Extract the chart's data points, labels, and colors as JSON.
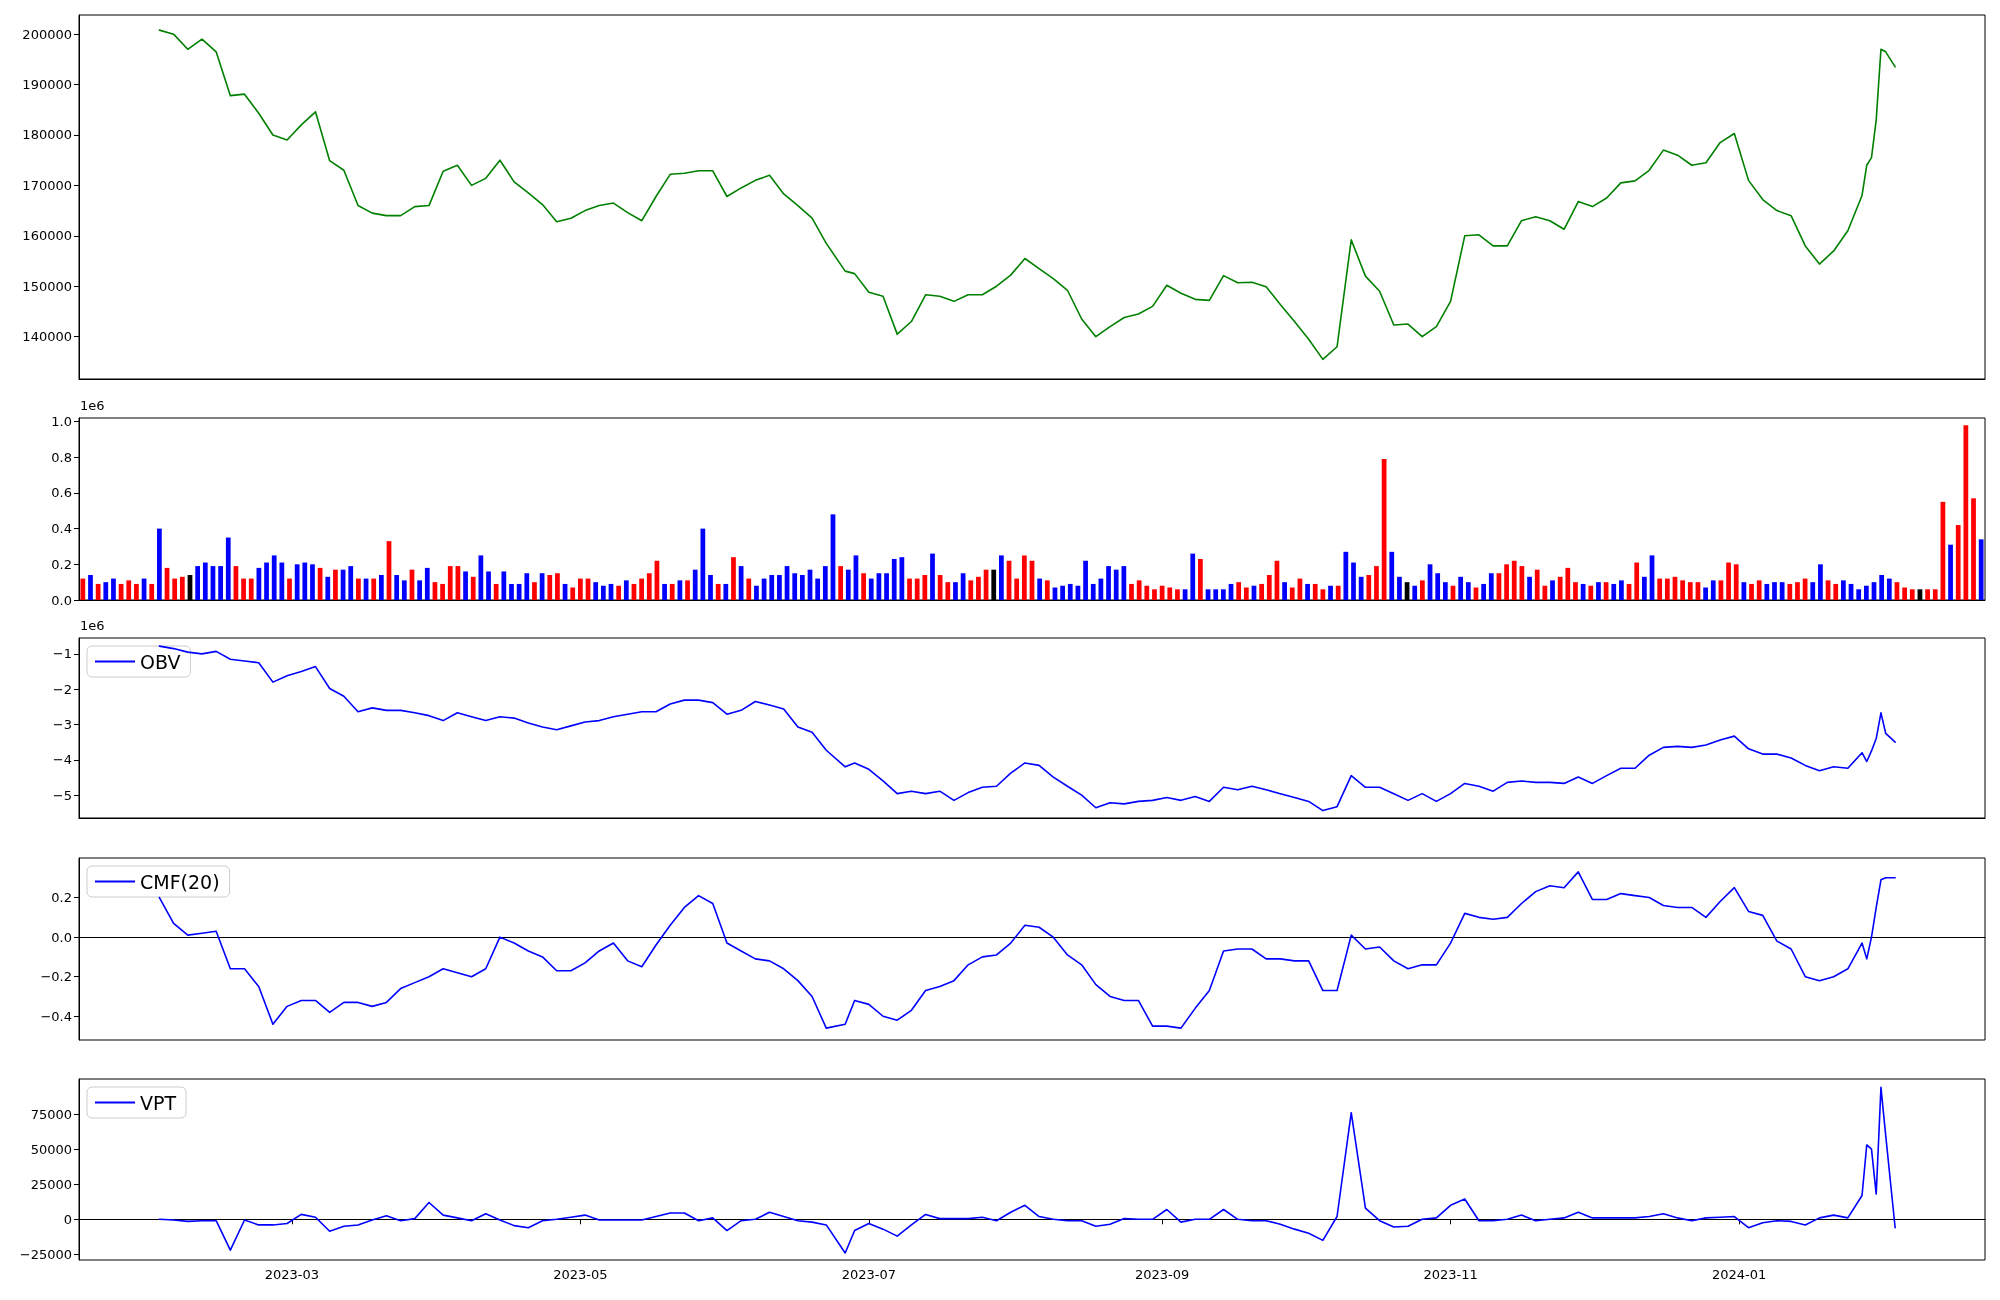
{
  "chart_data": [
    {
      "type": "line",
      "color": "#008000",
      "tick_labels": "y",
      "xlim": [
        "2023-01-15",
        "2024-02-22"
      ],
      "ylim": [
        131600,
        203800
      ],
      "yticks": [
        140000,
        150000,
        160000,
        170000,
        180000,
        190000,
        200000
      ],
      "x": [
        "2023-02-01",
        "2023-02-04",
        "2023-02-07",
        "2023-02-10",
        "2023-02-13",
        "2023-02-16",
        "2023-02-19",
        "2023-02-22",
        "2023-02-25",
        "2023-02-28",
        "2023-03-03",
        "2023-03-06",
        "2023-03-09",
        "2023-03-12",
        "2023-03-15",
        "2023-03-18",
        "2023-03-21",
        "2023-03-24",
        "2023-03-27",
        "2023-03-30",
        "2023-04-02",
        "2023-04-05",
        "2023-04-08",
        "2023-04-11",
        "2023-04-14",
        "2023-04-17",
        "2023-04-20",
        "2023-04-23",
        "2023-04-26",
        "2023-04-29",
        "2023-05-02",
        "2023-05-05",
        "2023-05-08",
        "2023-05-11",
        "2023-05-14",
        "2023-05-17",
        "2023-05-20",
        "2023-05-23",
        "2023-05-26",
        "2023-05-29",
        "2023-06-01",
        "2023-06-04",
        "2023-06-07",
        "2023-06-10",
        "2023-06-13",
        "2023-06-16",
        "2023-06-19",
        "2023-06-22",
        "2023-06-26",
        "2023-06-28",
        "2023-07-01",
        "2023-07-04",
        "2023-07-07",
        "2023-07-10",
        "2023-07-13",
        "2023-07-16",
        "2023-07-19",
        "2023-07-22",
        "2023-07-25",
        "2023-07-28",
        "2023-07-31",
        "2023-08-03",
        "2023-08-06",
        "2023-08-09",
        "2023-08-12",
        "2023-08-15",
        "2023-08-18",
        "2023-08-21",
        "2023-08-24",
        "2023-08-27",
        "2023-08-30",
        "2023-09-02",
        "2023-09-05",
        "2023-09-08",
        "2023-09-11",
        "2023-09-14",
        "2023-09-17",
        "2023-09-20",
        "2023-09-23",
        "2023-09-26",
        "2023-09-29",
        "2023-10-02",
        "2023-10-05",
        "2023-10-08",
        "2023-10-11",
        "2023-10-14",
        "2023-10-17",
        "2023-10-20",
        "2023-10-23",
        "2023-10-26",
        "2023-10-29",
        "2023-11-01",
        "2023-11-04",
        "2023-11-07",
        "2023-11-10",
        "2023-11-13",
        "2023-11-16",
        "2023-11-19",
        "2023-11-22",
        "2023-11-25",
        "2023-11-28",
        "2023-12-01",
        "2023-12-04",
        "2023-12-07",
        "2023-12-10",
        "2023-12-13",
        "2023-12-16",
        "2023-12-19",
        "2023-12-22",
        "2023-12-25",
        "2023-12-28",
        "2023-12-31",
        "2024-01-03",
        "2024-01-06",
        "2024-01-09",
        "2024-01-12",
        "2024-01-15",
        "2024-01-18",
        "2024-01-21",
        "2024-01-24",
        "2024-01-27",
        "2024-01-28",
        "2024-01-29",
        "2024-01-30",
        "2024-01-31",
        "2024-02-01",
        "2024-02-03"
      ],
      "values": [
        200800,
        200000,
        197000,
        199000,
        196500,
        187800,
        188100,
        184300,
        180000,
        179000,
        182000,
        184600,
        174900,
        173000,
        166000,
        164500,
        164000,
        164000,
        165800,
        166000,
        172800,
        174000,
        170000,
        171400,
        175000,
        170700,
        168500,
        166200,
        162800,
        163500,
        165000,
        166000,
        166500,
        164600,
        163000,
        167800,
        172200,
        172400,
        172900,
        172900,
        167800,
        169500,
        171000,
        172000,
        168300,
        166000,
        163500,
        158500,
        153000,
        152500,
        148800,
        148000,
        140500,
        143000,
        148300,
        148000,
        147000,
        148300,
        148300,
        150000,
        152200,
        155500,
        153500,
        151500,
        149200,
        143500,
        140000,
        142000,
        143800,
        144500,
        146000,
        150200,
        148600,
        147400,
        147200,
        152100,
        150700,
        150800,
        149900,
        146400,
        143000,
        139500,
        135500,
        138000,
        159200,
        152000,
        149000,
        142300,
        142500,
        140000,
        142000,
        147000,
        160000,
        160200,
        158000,
        158000,
        163000,
        163800,
        163000,
        161300,
        166800,
        165800,
        167500,
        170500,
        170900,
        173000,
        177000,
        176000,
        174000,
        174500,
        178500,
        180300,
        171000,
        167200,
        165000,
        164000,
        158000,
        154400,
        157000,
        161000,
        168000,
        174000,
        175500,
        183000,
        197000,
        196500,
        193500
      ]
    },
    {
      "type": "bar",
      "tick_labels": "y",
      "ylabel": "1e6",
      "ylim": [
        0,
        1.02
      ],
      "yticks": [
        {
          "value": 0,
          "label": "0.0"
        },
        {
          "value": 0.2,
          "label": "0.2"
        },
        {
          "value": 0.4,
          "label": "0.4"
        },
        {
          "value": 0.6,
          "label": "0.6"
        },
        {
          "value": 0.8,
          "label": "0.8"
        },
        {
          "value": 1,
          "label": "1.0"
        }
      ],
      "categories": [
        null,
        null,
        null,
        null,
        null,
        null,
        null,
        null,
        null,
        null,
        null,
        null,
        null,
        null,
        null,
        null,
        null,
        null,
        null,
        null,
        null,
        null,
        null,
        null,
        null,
        null,
        null,
        null,
        null,
        null,
        null,
        null,
        null,
        null,
        null,
        null,
        null,
        null,
        null,
        null,
        null,
        null,
        null,
        null,
        null,
        null,
        null,
        null,
        null,
        null,
        null,
        null,
        null,
        null,
        null,
        null,
        null,
        null,
        null,
        null,
        null,
        null,
        null,
        null,
        null,
        null,
        null,
        null,
        null,
        null,
        null,
        null,
        null,
        null,
        null,
        null,
        null,
        null,
        null,
        null,
        null,
        null,
        null,
        null,
        null,
        null,
        null,
        null,
        null,
        null,
        null,
        null,
        null,
        null,
        null,
        null,
        null,
        null,
        null,
        null,
        null,
        null,
        null,
        null,
        null,
        null,
        null,
        null,
        null,
        null,
        null,
        null,
        null,
        null,
        null,
        null,
        null,
        null,
        null,
        null,
        null,
        null,
        null,
        null,
        null,
        null,
        null,
        null,
        null,
        null,
        null,
        null,
        null,
        null,
        null,
        null,
        null,
        null,
        null,
        null,
        null,
        null,
        null,
        null,
        null,
        null,
        null,
        null,
        null,
        null,
        null,
        null,
        null,
        null,
        null,
        null,
        null,
        null,
        null,
        null,
        null,
        null,
        null,
        null,
        null,
        null,
        null,
        null,
        null,
        null,
        null,
        null,
        null,
        null,
        null,
        null,
        null,
        null,
        null,
        null,
        null,
        null,
        null,
        null,
        null,
        null,
        null,
        null,
        null,
        null,
        null,
        null,
        null,
        null,
        null,
        null,
        null,
        null,
        null,
        null,
        null,
        null,
        null,
        null,
        null,
        null,
        null,
        null,
        null,
        null,
        null,
        null,
        null,
        null,
        null,
        null,
        null,
        null,
        null,
        null,
        null,
        null,
        null,
        null,
        null,
        null,
        null,
        null,
        null,
        null,
        null,
        null,
        null,
        null,
        null,
        null,
        null,
        null,
        null,
        null,
        null,
        null,
        null,
        null,
        null,
        null,
        null,
        null,
        null
      ],
      "values": [
        0.12,
        0.14,
        0.09,
        0.1,
        0.12,
        0.09,
        0.11,
        0.09,
        0.12,
        0.09,
        0.4,
        0.18,
        0.12,
        0.13,
        0.14,
        0.19,
        0.21,
        0.19,
        0.19,
        0.35,
        0.19,
        0.12,
        0.12,
        0.18,
        0.21,
        0.25,
        0.21,
        0.12,
        0.2,
        0.21,
        0.2,
        0.18,
        0.13,
        0.17,
        0.17,
        0.19,
        0.12,
        0.12,
        0.12,
        0.14,
        0.33,
        0.14,
        0.11,
        0.17,
        0.11,
        0.18,
        0.1,
        0.09,
        0.19,
        0.19,
        0.16,
        0.13,
        0.25,
        0.16,
        0.09,
        0.16,
        0.09,
        0.09,
        0.15,
        0.1,
        0.15,
        0.14,
        0.15,
        0.09,
        0.07,
        0.12,
        0.12,
        0.1,
        0.08,
        0.09,
        0.08,
        0.11,
        0.09,
        0.12,
        0.15,
        0.22,
        0.09,
        0.09,
        0.11,
        0.11,
        0.17,
        0.4,
        0.14,
        0.09,
        0.09,
        0.24,
        0.19,
        0.12,
        0.08,
        0.12,
        0.14,
        0.14,
        0.19,
        0.15,
        0.14,
        0.17,
        0.12,
        0.19,
        0.48,
        0.19,
        0.17,
        0.25,
        0.15,
        0.12,
        0.15,
        0.15,
        0.23,
        0.24,
        0.12,
        0.12,
        0.14,
        0.26,
        0.14,
        0.1,
        0.1,
        0.15,
        0.11,
        0.13,
        0.17,
        0.17,
        0.25,
        0.22,
        0.12,
        0.25,
        0.22,
        0.12,
        0.11,
        0.07,
        0.08,
        0.09,
        0.08,
        0.22,
        0.09,
        0.12,
        0.19,
        0.17,
        0.19,
        0.09,
        0.11,
        0.08,
        0.06,
        0.08,
        0.07,
        0.06,
        0.06,
        0.26,
        0.23,
        0.06,
        0.06,
        0.06,
        0.09,
        0.1,
        0.07,
        0.08,
        0.09,
        0.14,
        0.22,
        0.1,
        0.07,
        0.12,
        0.09,
        0.09,
        0.06,
        0.08,
        0.08,
        0.27,
        0.21,
        0.13,
        0.14,
        0.19,
        0.79,
        0.27,
        0.13,
        0.1,
        0.08,
        0.11,
        0.2,
        0.15,
        0.1,
        0.08,
        0.13,
        0.1,
        0.07,
        0.09,
        0.15,
        0.15,
        0.2,
        0.22,
        0.19,
        0.13,
        0.17,
        0.08,
        0.11,
        0.13,
        0.18,
        0.1,
        0.09,
        0.08,
        0.1,
        0.1,
        0.09,
        0.11,
        0.09,
        0.21,
        0.13,
        0.25,
        0.12,
        0.12,
        0.13,
        0.11,
        0.1,
        0.1,
        0.07,
        0.11,
        0.11,
        0.21,
        0.2,
        0.1,
        0.09,
        0.11,
        0.09,
        0.1,
        0.1,
        0.09,
        0.1,
        0.12,
        0.1,
        0.2,
        0.11,
        0.09,
        0.11,
        0.09,
        0.06,
        0.08,
        0.1,
        0.14,
        0.12,
        0.1,
        0.07,
        0.06,
        0.06,
        0.06,
        0.06,
        0.55,
        0.31,
        0.42,
        0.98,
        0.57,
        0.34
      ],
      "colors": [
        "#ff0000",
        "#0000ff",
        "#ff0000",
        "#0000ff",
        "#0000ff",
        "#ff0000",
        "#ff0000",
        "#ff0000",
        "#0000ff",
        "#ff0000",
        "#0000ff",
        "#ff0000",
        "#ff0000",
        "#ff0000",
        "#000000",
        "#0000ff",
        "#0000ff",
        "#0000ff",
        "#0000ff",
        "#0000ff",
        "#ff0000",
        "#ff0000",
        "#ff0000",
        "#0000ff",
        "#0000ff",
        "#0000ff",
        "#0000ff",
        "#ff0000",
        "#0000ff",
        "#0000ff",
        "#0000ff",
        "#ff0000",
        "#0000ff",
        "#ff0000",
        "#0000ff",
        "#0000ff",
        "#ff0000",
        "#0000ff",
        "#ff0000",
        "#0000ff",
        "#ff0000",
        "#0000ff",
        "#0000ff",
        "#ff0000",
        "#0000ff",
        "#0000ff",
        "#ff0000",
        "#ff0000",
        "#ff0000",
        "#ff0000",
        "#0000ff",
        "#ff0000",
        "#0000ff",
        "#0000ff",
        "#ff0000",
        "#0000ff",
        "#0000ff",
        "#0000ff",
        "#0000ff",
        "#ff0000",
        "#0000ff",
        "#ff0000",
        "#ff0000",
        "#0000ff",
        "#ff0000",
        "#ff0000",
        "#ff0000",
        "#0000ff",
        "#0000ff",
        "#0000ff",
        "#ff0000",
        "#0000ff",
        "#ff0000",
        "#ff0000",
        "#ff0000",
        "#ff0000",
        "#0000ff",
        "#ff0000",
        "#0000ff",
        "#ff0000",
        "#0000ff",
        "#0000ff",
        "#0000ff",
        "#ff0000",
        "#0000ff",
        "#ff0000",
        "#0000ff",
        "#ff0000",
        "#0000ff",
        "#0000ff",
        "#0000ff",
        "#0000ff",
        "#0000ff",
        "#0000ff",
        "#0000ff",
        "#0000ff",
        "#0000ff",
        "#0000ff",
        "#0000ff",
        "#ff0000",
        "#0000ff",
        "#0000ff",
        "#ff0000",
        "#0000ff",
        "#0000ff",
        "#0000ff",
        "#0000ff",
        "#0000ff",
        "#ff0000",
        "#ff0000",
        "#ff0000",
        "#0000ff",
        "#ff0000",
        "#ff0000",
        "#0000ff",
        "#0000ff",
        "#ff0000",
        "#ff0000",
        "#ff0000",
        "#000000",
        "#0000ff",
        "#ff0000",
        "#ff0000",
        "#ff0000",
        "#ff0000",
        "#0000ff",
        "#ff0000",
        "#0000ff",
        "#0000ff",
        "#0000ff",
        "#0000ff",
        "#0000ff",
        "#0000ff",
        "#0000ff",
        "#0000ff",
        "#0000ff",
        "#0000ff",
        "#ff0000",
        "#ff0000",
        "#ff0000",
        "#ff0000",
        "#ff0000",
        "#ff0000",
        "#ff0000",
        "#0000ff",
        "#0000ff",
        "#ff0000",
        "#0000ff",
        "#0000ff",
        "#0000ff",
        "#0000ff",
        "#ff0000",
        "#ff0000",
        "#0000ff",
        "#ff0000",
        "#ff0000",
        "#ff0000",
        "#0000ff",
        "#ff0000",
        "#ff0000",
        "#0000ff",
        "#ff0000",
        "#ff0000",
        "#0000ff",
        "#ff0000",
        "#0000ff",
        "#0000ff",
        "#0000ff",
        "#ff0000",
        "#ff0000",
        "#ff0000",
        "#0000ff",
        "#0000ff",
        "#000000",
        "#0000ff",
        "#ff0000",
        "#0000ff",
        "#0000ff",
        "#0000ff",
        "#ff0000",
        "#0000ff",
        "#0000ff",
        "#ff0000",
        "#0000ff",
        "#0000ff",
        "#ff0000",
        "#ff0000",
        "#ff0000",
        "#ff0000",
        "#0000ff",
        "#ff0000",
        "#ff0000",
        "#0000ff",
        "#ff0000",
        "#ff0000",
        "#ff0000",
        "#0000ff",
        "#ff0000",
        "#0000ff",
        "#ff0000",
        "#0000ff",
        "#0000ff",
        "#ff0000",
        "#ff0000",
        "#0000ff",
        "#0000ff",
        "#ff0000",
        "#ff0000",
        "#ff0000",
        "#ff0000",
        "#ff0000",
        "#ff0000",
        "#0000ff",
        "#0000ff",
        "#ff0000",
        "#ff0000",
        "#ff0000",
        "#0000ff",
        "#ff0000",
        "#ff0000",
        "#0000ff",
        "#0000ff",
        "#0000ff",
        "#ff0000",
        "#ff0000",
        "#ff0000",
        "#0000ff",
        "#0000ff",
        "#ff0000",
        "#ff0000",
        "#0000ff",
        "#0000ff",
        "#0000ff",
        "#0000ff",
        "#0000ff",
        "#0000ff",
        "#0000ff",
        "#ff0000",
        "#ff0000",
        "#ff0000",
        "#000000",
        "#ff0000",
        "#ff0000",
        "#ff0000",
        "#0000ff",
        "#ff0000",
        "#ff0000",
        "#ff0000",
        "#0000ff"
      ]
    },
    {
      "type": "line",
      "tick_labels": "y",
      "legend": "top left",
      "ylabel": "1e6",
      "xlim": [
        "2023-01-15",
        "2024-02-22"
      ],
      "ylim": [
        -5.65,
        -0.55
      ],
      "yticks": [
        {
          "value": -5,
          "label": "−5"
        },
        {
          "value": -4,
          "label": "−4"
        },
        {
          "value": -3,
          "label": "−3"
        },
        {
          "value": -2,
          "label": "−2"
        },
        {
          "value": -1,
          "label": "−1"
        }
      ],
      "x": [
        "2023-02-01",
        "2023-02-04",
        "2023-02-07",
        "2023-02-10",
        "2023-02-13",
        "2023-02-16",
        "2023-02-19",
        "2023-02-22",
        "2023-02-25",
        "2023-02-28",
        "2023-03-03",
        "2023-03-06",
        "2023-03-09",
        "2023-03-12",
        "2023-03-15",
        "2023-03-18",
        "2023-03-21",
        "2023-03-24",
        "2023-03-27",
        "2023-03-30",
        "2023-04-02",
        "2023-04-05",
        "2023-04-08",
        "2023-04-11",
        "2023-04-14",
        "2023-04-17",
        "2023-04-20",
        "2023-04-23",
        "2023-04-26",
        "2023-04-29",
        "2023-05-02",
        "2023-05-05",
        "2023-05-08",
        "2023-05-11",
        "2023-05-14",
        "2023-05-17",
        "2023-05-20",
        "2023-05-23",
        "2023-05-26",
        "2023-05-29",
        "2023-06-01",
        "2023-06-04",
        "2023-06-07",
        "2023-06-10",
        "2023-06-13",
        "2023-06-16",
        "2023-06-19",
        "2023-06-22",
        "2023-06-26",
        "2023-06-28",
        "2023-07-01",
        "2023-07-04",
        "2023-07-07",
        "2023-07-10",
        "2023-07-13",
        "2023-07-16",
        "2023-07-19",
        "2023-07-22",
        "2023-07-25",
        "2023-07-28",
        "2023-07-31",
        "2023-08-03",
        "2023-08-06",
        "2023-08-09",
        "2023-08-12",
        "2023-08-15",
        "2023-08-18",
        "2023-08-21",
        "2023-08-24",
        "2023-08-27",
        "2023-08-30",
        "2023-09-02",
        "2023-09-05",
        "2023-09-08",
        "2023-09-11",
        "2023-09-14",
        "2023-09-17",
        "2023-09-20",
        "2023-09-23",
        "2023-09-26",
        "2023-09-29",
        "2023-10-02",
        "2023-10-05",
        "2023-10-08",
        "2023-10-11",
        "2023-10-14",
        "2023-10-17",
        "2023-10-20",
        "2023-10-23",
        "2023-10-26",
        "2023-10-29",
        "2023-11-01",
        "2023-11-04",
        "2023-11-07",
        "2023-11-10",
        "2023-11-13",
        "2023-11-16",
        "2023-11-19",
        "2023-11-22",
        "2023-11-25",
        "2023-11-28",
        "2023-12-01",
        "2023-12-04",
        "2023-12-07",
        "2023-12-10",
        "2023-12-13",
        "2023-12-16",
        "2023-12-19",
        "2023-12-22",
        "2023-12-25",
        "2023-12-28",
        "2023-12-31",
        "2024-01-03",
        "2024-01-06",
        "2024-01-09",
        "2024-01-12",
        "2024-01-15",
        "2024-01-18",
        "2024-01-21",
        "2024-01-24",
        "2024-01-27",
        "2024-01-28",
        "2024-01-29",
        "2024-01-30",
        "2024-01-31",
        "2024-02-01",
        "2024-02-03"
      ],
      "series": [
        {
          "name": "OBV",
          "color": "#0000ff",
          "values": [
            -0.78,
            -0.85,
            -0.95,
            -1.0,
            -0.93,
            -1.15,
            -1.2,
            -1.25,
            -1.8,
            -1.62,
            -1.5,
            -1.36,
            -1.98,
            -2.2,
            -2.64,
            -2.53,
            -2.6,
            -2.6,
            -2.67,
            -2.75,
            -2.89,
            -2.67,
            -2.78,
            -2.89,
            -2.78,
            -2.82,
            -2.96,
            -3.07,
            -3.15,
            -3.04,
            -2.93,
            -2.89,
            -2.78,
            -2.71,
            -2.64,
            -2.64,
            -2.42,
            -2.31,
            -2.31,
            -2.38,
            -2.71,
            -2.6,
            -2.35,
            -2.45,
            -2.56,
            -3.07,
            -3.22,
            -3.73,
            -4.2,
            -4.09,
            -4.27,
            -4.6,
            -4.96,
            -4.89,
            -4.96,
            -4.89,
            -5.15,
            -4.93,
            -4.78,
            -4.75,
            -4.38,
            -4.09,
            -4.16,
            -4.49,
            -4.75,
            -5.0,
            -5.36,
            -5.22,
            -5.25,
            -5.18,
            -5.15,
            -5.07,
            -5.15,
            -5.04,
            -5.18,
            -4.78,
            -4.85,
            -4.75,
            -4.85,
            -4.96,
            -5.07,
            -5.18,
            -5.44,
            -5.33,
            -4.45,
            -4.78,
            -4.78,
            -4.96,
            -5.15,
            -4.96,
            -5.18,
            -4.96,
            -4.67,
            -4.75,
            -4.89,
            -4.64,
            -4.6,
            -4.64,
            -4.64,
            -4.67,
            -4.49,
            -4.67,
            -4.45,
            -4.24,
            -4.24,
            -3.87,
            -3.65,
            -3.62,
            -3.65,
            -3.58,
            -3.44,
            -3.33,
            -3.69,
            -3.84,
            -3.84,
            -3.95,
            -4.16,
            -4.31,
            -4.2,
            -4.24,
            -3.8,
            -4.05,
            -3.75,
            -3.4,
            -2.67,
            -3.25,
            -3.5
          ]
        }
      ]
    },
    {
      "type": "line",
      "tick_labels": "y",
      "legend": "top left",
      "xlim": [
        "2023-01-15",
        "2024-02-22"
      ],
      "ylim": [
        -0.52,
        0.4
      ],
      "yticks": [
        {
          "value": -0.4,
          "label": "−0.4"
        },
        {
          "value": -0.2,
          "label": "−0.2"
        },
        {
          "value": 0,
          "label": "0.0"
        },
        {
          "value": 0.2,
          "label": "0.2"
        }
      ],
      "x": [
        "2023-02-01",
        "2023-02-04",
        "2023-02-07",
        "2023-02-10",
        "2023-02-13",
        "2023-02-16",
        "2023-02-19",
        "2023-02-22",
        "2023-02-25",
        "2023-02-28",
        "2023-03-03",
        "2023-03-06",
        "2023-03-09",
        "2023-03-12",
        "2023-03-15",
        "2023-03-18",
        "2023-03-21",
        "2023-03-24",
        "2023-03-27",
        "2023-03-30",
        "2023-04-02",
        "2023-04-05",
        "2023-04-08",
        "2023-04-11",
        "2023-04-14",
        "2023-04-17",
        "2023-04-20",
        "2023-04-23",
        "2023-04-26",
        "2023-04-29",
        "2023-05-02",
        "2023-05-05",
        "2023-05-08",
        "2023-05-11",
        "2023-05-14",
        "2023-05-17",
        "2023-05-20",
        "2023-05-23",
        "2023-05-26",
        "2023-05-29",
        "2023-06-01",
        "2023-06-04",
        "2023-06-07",
        "2023-06-10",
        "2023-06-13",
        "2023-06-16",
        "2023-06-19",
        "2023-06-22",
        "2023-06-26",
        "2023-06-28",
        "2023-07-01",
        "2023-07-04",
        "2023-07-07",
        "2023-07-10",
        "2023-07-13",
        "2023-07-16",
        "2023-07-19",
        "2023-07-22",
        "2023-07-25",
        "2023-07-28",
        "2023-07-31",
        "2023-08-03",
        "2023-08-06",
        "2023-08-09",
        "2023-08-12",
        "2023-08-15",
        "2023-08-18",
        "2023-08-21",
        "2023-08-24",
        "2023-08-27",
        "2023-08-30",
        "2023-09-02",
        "2023-09-05",
        "2023-09-08",
        "2023-09-11",
        "2023-09-14",
        "2023-09-17",
        "2023-09-20",
        "2023-09-23",
        "2023-09-26",
        "2023-09-29",
        "2023-10-02",
        "2023-10-05",
        "2023-10-08",
        "2023-10-11",
        "2023-10-14",
        "2023-10-17",
        "2023-10-20",
        "2023-10-23",
        "2023-10-26",
        "2023-10-29",
        "2023-11-01",
        "2023-11-04",
        "2023-11-07",
        "2023-11-10",
        "2023-11-13",
        "2023-11-16",
        "2023-11-19",
        "2023-11-22",
        "2023-11-25",
        "2023-11-28",
        "2023-12-01",
        "2023-12-04",
        "2023-12-07",
        "2023-12-10",
        "2023-12-13",
        "2023-12-16",
        "2023-12-19",
        "2023-12-22",
        "2023-12-25",
        "2023-12-28",
        "2023-12-31",
        "2024-01-03",
        "2024-01-06",
        "2024-01-09",
        "2024-01-12",
        "2024-01-15",
        "2024-01-18",
        "2024-01-21",
        "2024-01-24",
        "2024-01-27",
        "2024-01-28",
        "2024-01-29",
        "2024-01-30",
        "2024-01-31",
        "2024-02-01",
        "2024-02-03"
      ],
      "series": [
        {
          "name": "CMF(20)",
          "color": "#0000ff",
          "values": [
            0.2,
            0.07,
            0.01,
            0.02,
            0.03,
            -0.16,
            -0.16,
            -0.25,
            -0.44,
            -0.35,
            -0.32,
            -0.32,
            -0.38,
            -0.33,
            -0.33,
            -0.35,
            -0.33,
            -0.26,
            -0.23,
            -0.2,
            -0.16,
            -0.18,
            -0.2,
            -0.16,
            0.0,
            -0.03,
            -0.07,
            -0.1,
            -0.17,
            -0.17,
            -0.13,
            -0.07,
            -0.03,
            -0.12,
            -0.15,
            -0.04,
            0.06,
            0.15,
            0.21,
            0.17,
            -0.03,
            -0.07,
            -0.11,
            -0.12,
            -0.16,
            -0.22,
            -0.3,
            -0.46,
            -0.44,
            -0.32,
            -0.34,
            -0.4,
            -0.42,
            -0.37,
            -0.27,
            -0.25,
            -0.22,
            -0.14,
            -0.1,
            -0.09,
            -0.03,
            0.06,
            0.05,
            0.0,
            -0.09,
            -0.14,
            -0.24,
            -0.3,
            -0.32,
            -0.32,
            -0.45,
            -0.45,
            -0.46,
            -0.36,
            -0.27,
            -0.07,
            -0.06,
            -0.06,
            -0.11,
            -0.11,
            -0.12,
            -0.12,
            -0.27,
            -0.27,
            0.01,
            -0.06,
            -0.05,
            -0.12,
            -0.16,
            -0.14,
            -0.14,
            -0.03,
            0.12,
            0.1,
            0.09,
            0.1,
            0.17,
            0.23,
            0.26,
            0.25,
            0.33,
            0.19,
            0.19,
            0.22,
            0.21,
            0.2,
            0.16,
            0.15,
            0.15,
            0.1,
            0.18,
            0.25,
            0.13,
            0.11,
            -0.02,
            -0.06,
            -0.2,
            -0.22,
            -0.2,
            -0.16,
            -0.03,
            -0.11,
            0.0,
            0.15,
            0.29,
            0.3,
            0.3
          ]
        }
      ]
    },
    {
      "type": "line",
      "legend": "top left",
      "xlim": [
        "2023-01-15",
        "2024-02-22"
      ],
      "xticks": [
        "2023-03",
        "2023-05",
        "2023-07",
        "2023-09",
        "2023-11",
        "2024-01"
      ],
      "ylim": [
        -29000,
        100000
      ],
      "yticks": [
        {
          "value": -25000,
          "label": "−25000"
        },
        0,
        25000,
        50000,
        75000
      ],
      "x": [
        "2023-02-01",
        "2023-02-04",
        "2023-02-07",
        "2023-02-10",
        "2023-02-13",
        "2023-02-16",
        "2023-02-19",
        "2023-02-22",
        "2023-02-25",
        "2023-02-28",
        "2023-03-03",
        "2023-03-06",
        "2023-03-09",
        "2023-03-12",
        "2023-03-15",
        "2023-03-18",
        "2023-03-21",
        "2023-03-24",
        "2023-03-27",
        "2023-03-30",
        "2023-04-02",
        "2023-04-05",
        "2023-04-08",
        "2023-04-11",
        "2023-04-14",
        "2023-04-17",
        "2023-04-20",
        "2023-04-23",
        "2023-04-26",
        "2023-04-29",
        "2023-05-02",
        "2023-05-05",
        "2023-05-08",
        "2023-05-11",
        "2023-05-14",
        "2023-05-17",
        "2023-05-20",
        "2023-05-23",
        "2023-05-26",
        "2023-05-29",
        "2023-06-01",
        "2023-06-04",
        "2023-06-07",
        "2023-06-10",
        "2023-06-13",
        "2023-06-16",
        "2023-06-19",
        "2023-06-22",
        "2023-06-26",
        "2023-06-28",
        "2023-07-01",
        "2023-07-04",
        "2023-07-07",
        "2023-07-10",
        "2023-07-13",
        "2023-07-16",
        "2023-07-19",
        "2023-07-22",
        "2023-07-25",
        "2023-07-28",
        "2023-07-31",
        "2023-08-03",
        "2023-08-06",
        "2023-08-09",
        "2023-08-12",
        "2023-08-15",
        "2023-08-18",
        "2023-08-21",
        "2023-08-24",
        "2023-08-27",
        "2023-08-30",
        "2023-09-02",
        "2023-09-05",
        "2023-09-08",
        "2023-09-11",
        "2023-09-14",
        "2023-09-17",
        "2023-09-20",
        "2023-09-23",
        "2023-09-26",
        "2023-09-29",
        "2023-10-02",
        "2023-10-05",
        "2023-10-08",
        "2023-10-11",
        "2023-10-14",
        "2023-10-17",
        "2023-10-20",
        "2023-10-23",
        "2023-10-26",
        "2023-10-29",
        "2023-11-01",
        "2023-11-04",
        "2023-11-07",
        "2023-11-10",
        "2023-11-13",
        "2023-11-16",
        "2023-11-19",
        "2023-11-22",
        "2023-11-25",
        "2023-11-28",
        "2023-12-01",
        "2023-12-04",
        "2023-12-07",
        "2023-12-10",
        "2023-12-13",
        "2023-12-16",
        "2023-12-19",
        "2023-12-22",
        "2023-12-25",
        "2023-12-28",
        "2023-12-31",
        "2024-01-03",
        "2024-01-06",
        "2024-01-09",
        "2024-01-12",
        "2024-01-15",
        "2024-01-18",
        "2024-01-21",
        "2024-01-24",
        "2024-01-27",
        "2024-01-28",
        "2024-01-29",
        "2024-01-30",
        "2024-01-31",
        "2024-02-01",
        "2024-02-03"
      ],
      "series": [
        {
          "name": "VPT",
          "color": "#0000ff",
          "values": [
            0,
            -500,
            -1500,
            -1000,
            -1000,
            -22000,
            -500,
            -4000,
            -4000,
            -3000,
            3500,
            1500,
            -8500,
            -5000,
            -4000,
            -500,
            2500,
            -1000,
            500,
            12000,
            3000,
            1000,
            -1000,
            4000,
            -500,
            -4500,
            -6000,
            -1000,
            0,
            1500,
            3000,
            -500,
            -500,
            -500,
            -500,
            2000,
            4500,
            4500,
            -1000,
            1000,
            -8000,
            -1000,
            0,
            5000,
            2000,
            -1000,
            -2000,
            -4000,
            -24000,
            -8000,
            -3000,
            -7000,
            -12000,
            -4000,
            3500,
            500,
            500,
            500,
            1500,
            -1000,
            5000,
            10000,
            2000,
            0,
            -1000,
            -1000,
            -5000,
            -3500,
            500,
            0,
            0,
            7000,
            -2000,
            0,
            0,
            7000,
            0,
            -1000,
            -1000,
            -3500,
            -7000,
            -10000,
            -15000,
            2000,
            76000,
            8000,
            -1000,
            -5500,
            -5000,
            0,
            1000,
            10000,
            14500,
            -1000,
            -1000,
            0,
            3000,
            -1000,
            0,
            1000,
            5000,
            1000,
            1000,
            1000,
            1000,
            2000,
            4000,
            1000,
            -1000,
            1000,
            1500,
            2000,
            -6000,
            -2500,
            -1000,
            -1500,
            -4000,
            1000,
            3000,
            1000,
            17000,
            53000,
            50000,
            18000,
            94000,
            60000,
            -6000
          ]
        }
      ]
    }
  ]
}
